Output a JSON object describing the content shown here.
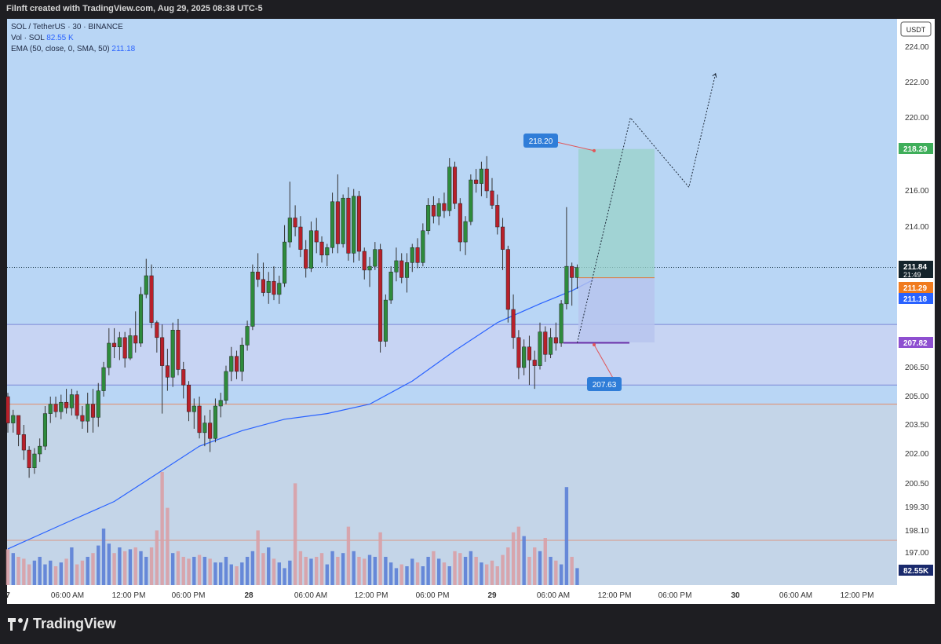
{
  "header": {
    "title": "Filnft created with TradingView.com, Aug 29, 2025 08:38 UTC-5"
  },
  "legend": {
    "symbol": "SOL / TetherUS · 30 · BINANCE",
    "vol_label": "Vol · SOL",
    "vol_value": "82.55 K",
    "ema_label": "EMA (50, close, 0, SMA, 50)",
    "ema_value": "211.18"
  },
  "brand": {
    "name": "TradingView",
    "logo_icon": "tradingview-logo-icon"
  },
  "colors": {
    "bull": "#26a69a",
    "bear": "#b8202a",
    "ema": "#2962ff",
    "zone": "#c9d4f2",
    "target_zone": "#9ad1c8",
    "stop_zone": "#b7c3ee",
    "chart_bg": "#b9d6f5",
    "lower_bg": "#c4d5e8"
  },
  "chart_data": {
    "type": "candlestick",
    "currency_label": "USDT",
    "y_ticks": [
      "224.00",
      "222.00",
      "220.00",
      "216.00",
      "214.00",
      "206.50",
      "205.00",
      "203.50",
      "202.00",
      "200.50",
      "199.30",
      "198.10",
      "197.00"
    ],
    "y_tick_values": [
      224.0,
      222.0,
      220.0,
      216.0,
      214.0,
      206.5,
      205.0,
      203.5,
      202.0,
      200.5,
      199.3,
      198.1,
      197.0
    ],
    "x_ticks": [
      "7",
      "06:00 AM",
      "12:00 PM",
      "06:00 PM",
      "28",
      "06:00 AM",
      "12:00 PM",
      "06:00 PM",
      "29",
      "06:00 AM",
      "12:00 PM",
      "06:00 PM",
      "30",
      "06:00 AM",
      "12:00 PM"
    ],
    "price_badges": [
      {
        "label": "218.29",
        "value": 218.29,
        "color": "#3fae5a"
      },
      {
        "label": "211.84",
        "value": 211.84,
        "color": "#14242c",
        "sub": "21:49"
      },
      {
        "label": "211.29",
        "value": 211.29,
        "color": "#f07b1e"
      },
      {
        "label": "211.18",
        "value": 211.18,
        "color": "#2962ff"
      },
      {
        "label": "207.82",
        "value": 207.82,
        "color": "#8e4fd0"
      },
      {
        "label": "82.55K",
        "value": null,
        "color": "#1a2a6c"
      }
    ],
    "annotations": [
      {
        "label": "218.20",
        "value": 218.2
      },
      {
        "label": "207.63",
        "value": 207.63
      }
    ],
    "zone": {
      "top": 208.8,
      "bottom": 205.6
    },
    "resistance_line": 204.6,
    "current_price": 211.84,
    "ohlc": [
      [
        205.0,
        205.2,
        203.1,
        203.6
      ],
      [
        203.6,
        204.3,
        203.1,
        204.0
      ],
      [
        204.0,
        204.0,
        202.4,
        203.0
      ],
      [
        203.0,
        203.5,
        201.7,
        202.2
      ],
      [
        202.2,
        202.4,
        200.8,
        201.3
      ],
      [
        201.3,
        202.3,
        201.0,
        202.0
      ],
      [
        202.0,
        202.8,
        201.6,
        202.4
      ],
      [
        202.4,
        204.5,
        202.2,
        204.1
      ],
      [
        204.1,
        205.0,
        203.6,
        204.6
      ],
      [
        204.6,
        205.0,
        203.9,
        204.2
      ],
      [
        204.2,
        205.1,
        203.8,
        204.7
      ],
      [
        204.7,
        205.4,
        204.1,
        204.4
      ],
      [
        204.4,
        205.4,
        204.0,
        205.1
      ],
      [
        205.1,
        205.3,
        203.8,
        204.0
      ],
      [
        204.0,
        204.5,
        203.3,
        203.7
      ],
      [
        203.7,
        205.2,
        203.1,
        204.6
      ],
      [
        204.6,
        205.4,
        203.1,
        203.9
      ],
      [
        203.9,
        205.7,
        203.4,
        205.3
      ],
      [
        205.3,
        206.8,
        205.0,
        206.5
      ],
      [
        206.5,
        208.6,
        206.1,
        207.8
      ],
      [
        207.8,
        208.6,
        207.0,
        207.6
      ],
      [
        207.6,
        208.4,
        206.9,
        208.1
      ],
      [
        208.1,
        208.4,
        206.5,
        207.0
      ],
      [
        207.0,
        208.6,
        206.9,
        208.2
      ],
      [
        208.2,
        209.5,
        207.3,
        207.8
      ],
      [
        207.8,
        210.8,
        207.6,
        210.4
      ],
      [
        210.4,
        212.3,
        210.2,
        211.4
      ],
      [
        211.4,
        212.0,
        208.6,
        208.9
      ],
      [
        208.9,
        209.0,
        207.3,
        208.1
      ],
      [
        208.1,
        208.8,
        204.1,
        206.6
      ],
      [
        206.6,
        207.5,
        205.3,
        206.0
      ],
      [
        206.0,
        208.9,
        205.5,
        208.5
      ],
      [
        208.5,
        209.1,
        206.1,
        206.4
      ],
      [
        206.4,
        206.8,
        204.9,
        205.6
      ],
      [
        205.6,
        205.8,
        203.7,
        204.2
      ],
      [
        204.2,
        204.9,
        203.3,
        204.5
      ],
      [
        204.5,
        205.0,
        202.8,
        203.1
      ],
      [
        203.1,
        204.0,
        202.4,
        203.6
      ],
      [
        203.6,
        204.3,
        202.1,
        202.8
      ],
      [
        202.8,
        204.9,
        202.6,
        204.5
      ],
      [
        204.5,
        205.2,
        203.9,
        204.8
      ],
      [
        204.8,
        206.6,
        204.6,
        206.3
      ],
      [
        206.3,
        207.6,
        205.8,
        207.1
      ],
      [
        207.1,
        207.4,
        205.9,
        206.3
      ],
      [
        206.3,
        208.1,
        205.8,
        207.7
      ],
      [
        207.7,
        209.0,
        207.4,
        208.7
      ],
      [
        208.7,
        212.0,
        208.5,
        211.6
      ],
      [
        211.6,
        212.6,
        210.8,
        211.2
      ],
      [
        211.2,
        212.1,
        210.3,
        210.5
      ],
      [
        210.5,
        211.6,
        209.9,
        211.1
      ],
      [
        211.1,
        211.9,
        210.1,
        210.4
      ],
      [
        210.4,
        211.4,
        209.9,
        211.0
      ],
      [
        211.0,
        214.1,
        210.8,
        213.2
      ],
      [
        213.2,
        216.5,
        212.9,
        214.5
      ],
      [
        214.5,
        215.2,
        213.5,
        214.0
      ],
      [
        214.0,
        214.6,
        212.4,
        212.8
      ],
      [
        212.8,
        213.3,
        211.3,
        211.8
      ],
      [
        211.8,
        214.3,
        211.6,
        213.8
      ],
      [
        213.8,
        214.5,
        212.6,
        213.2
      ],
      [
        213.2,
        213.5,
        212.1,
        212.5
      ],
      [
        212.5,
        213.1,
        211.9,
        212.9
      ],
      [
        212.9,
        215.9,
        212.6,
        215.4
      ],
      [
        215.4,
        216.9,
        212.6,
        213.1
      ],
      [
        213.1,
        215.8,
        212.9,
        215.6
      ],
      [
        215.6,
        216.2,
        212.2,
        212.6
      ],
      [
        212.6,
        216.1,
        212.1,
        215.7
      ],
      [
        215.7,
        216.0,
        212.2,
        212.7
      ],
      [
        212.7,
        212.9,
        211.2,
        211.7
      ],
      [
        211.7,
        212.4,
        210.8,
        211.9
      ],
      [
        211.9,
        213.2,
        211.7,
        212.8
      ],
      [
        212.8,
        213.1,
        207.3,
        207.9
      ],
      [
        207.9,
        210.4,
        207.6,
        210.1
      ],
      [
        210.1,
        211.9,
        209.9,
        211.6
      ],
      [
        211.6,
        212.9,
        211.1,
        212.2
      ],
      [
        212.2,
        212.6,
        211.0,
        211.3
      ],
      [
        211.3,
        212.6,
        210.5,
        212.1
      ],
      [
        212.1,
        213.1,
        211.6,
        212.9
      ],
      [
        212.9,
        213.4,
        211.8,
        212.1
      ],
      [
        212.1,
        214.2,
        211.9,
        213.8
      ],
      [
        213.8,
        215.6,
        213.6,
        215.2
      ],
      [
        215.2,
        215.7,
        214.2,
        214.6
      ],
      [
        214.6,
        215.6,
        214.1,
        215.3
      ],
      [
        215.3,
        215.9,
        214.5,
        214.9
      ],
      [
        214.9,
        217.8,
        214.6,
        217.3
      ],
      [
        217.3,
        217.6,
        215.0,
        215.3
      ],
      [
        215.3,
        215.6,
        212.7,
        213.2
      ],
      [
        213.2,
        214.6,
        212.5,
        214.3
      ],
      [
        214.3,
        216.9,
        214.1,
        216.6
      ],
      [
        216.6,
        217.2,
        215.9,
        216.4
      ],
      [
        216.4,
        217.6,
        215.7,
        217.2
      ],
      [
        217.2,
        217.9,
        215.6,
        216.0
      ],
      [
        216.0,
        216.7,
        215.0,
        215.2
      ],
      [
        215.2,
        215.8,
        213.6,
        214.0
      ],
      [
        214.0,
        214.5,
        211.7,
        212.8
      ],
      [
        212.8,
        213.0,
        208.9,
        209.6
      ],
      [
        209.6,
        210.4,
        207.5,
        208.1
      ],
      [
        208.1,
        208.5,
        205.9,
        206.5
      ],
      [
        206.5,
        208.0,
        206.1,
        207.6
      ],
      [
        207.6,
        208.2,
        205.6,
        206.9
      ],
      [
        206.9,
        207.4,
        205.4,
        206.6
      ],
      [
        206.6,
        208.9,
        206.4,
        208.4
      ],
      [
        208.4,
        208.7,
        206.8,
        207.2
      ],
      [
        207.2,
        208.6,
        207.0,
        208.1
      ],
      [
        208.1,
        208.9,
        207.4,
        207.8
      ],
      [
        207.8,
        210.1,
        207.6,
        209.9
      ],
      [
        209.9,
        215.1,
        209.6,
        211.9
      ],
      [
        211.9,
        212.1,
        209.8,
        211.3
      ],
      [
        211.3,
        212.0,
        210.7,
        211.84
      ]
    ],
    "volume": [
      38,
      34,
      30,
      28,
      22,
      26,
      30,
      22,
      26,
      20,
      24,
      28,
      40,
      22,
      26,
      30,
      34,
      42,
      60,
      44,
      34,
      40,
      36,
      38,
      40,
      36,
      30,
      40,
      58,
      120,
      82,
      34,
      36,
      30,
      28,
      30,
      32,
      30,
      28,
      24,
      24,
      30,
      22,
      20,
      24,
      30,
      36,
      58,
      34,
      40,
      28,
      24,
      18,
      26,
      108,
      36,
      30,
      28,
      30,
      34,
      22,
      36,
      30,
      34,
      62,
      36,
      30,
      28,
      32,
      30,
      56,
      30,
      24,
      18,
      22,
      20,
      28,
      24,
      20,
      30,
      36,
      28,
      24,
      20,
      36,
      34,
      30,
      36,
      30,
      24,
      22,
      26,
      20,
      32,
      40,
      56,
      62,
      52,
      30,
      40,
      36,
      50,
      30,
      26,
      22,
      104,
      30,
      18
    ],
    "ema_50": [
      [
        0,
        197.2
      ],
      [
        10,
        198.4
      ],
      [
        20,
        199.6
      ],
      [
        28,
        201.0
      ],
      [
        36,
        202.4
      ],
      [
        44,
        203.2
      ],
      [
        52,
        203.8
      ],
      [
        60,
        204.1
      ],
      [
        68,
        204.6
      ],
      [
        76,
        205.8
      ],
      [
        84,
        207.4
      ],
      [
        92,
        208.9
      ],
      [
        100,
        209.9
      ],
      [
        106,
        210.6
      ],
      [
        110,
        211.18
      ]
    ],
    "projection_path": [
      [
        107,
        207.82
      ],
      [
        117,
        220.0
      ],
      [
        128,
        216.2
      ],
      [
        133,
        222.5
      ]
    ]
  }
}
